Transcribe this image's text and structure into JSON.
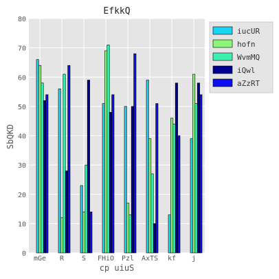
{
  "chart_data": {
    "type": "bar",
    "title": "EfkkQ",
    "xlabel": "cp  uiuS",
    "ylabel": "SbQKD",
    "categories": [
      "mGe",
      "R",
      "S",
      "FHiO",
      "Pzl",
      "AxTS",
      "kf",
      "j"
    ],
    "ylim": [
      0,
      80
    ],
    "yticks": [
      0,
      10,
      20,
      30,
      40,
      50,
      60,
      70,
      80
    ],
    "grid": true,
    "legend_position": "top-right",
    "series": [
      {
        "name": "iucUR",
        "color": "#19d3f3",
        "values": [
          66,
          56,
          23,
          51,
          50,
          59,
          13,
          39
        ]
      },
      {
        "name": "hofn",
        "color": "#8cf57a",
        "values": [
          64,
          12,
          14,
          69,
          17,
          39,
          46,
          61
        ]
      },
      {
        "name": "WvmMQ",
        "color": "#3cf0b0",
        "values": [
          58,
          61,
          30,
          71,
          13,
          27,
          44,
          51
        ]
      },
      {
        "name": "iQwl",
        "color": "#00008f",
        "values": [
          52,
          28,
          59,
          48,
          50,
          10,
          58,
          58
        ]
      },
      {
        "name": "aZzRT",
        "color": "#0a10ef",
        "values": [
          54,
          64,
          14,
          54,
          68,
          51,
          40,
          54
        ]
      }
    ]
  }
}
